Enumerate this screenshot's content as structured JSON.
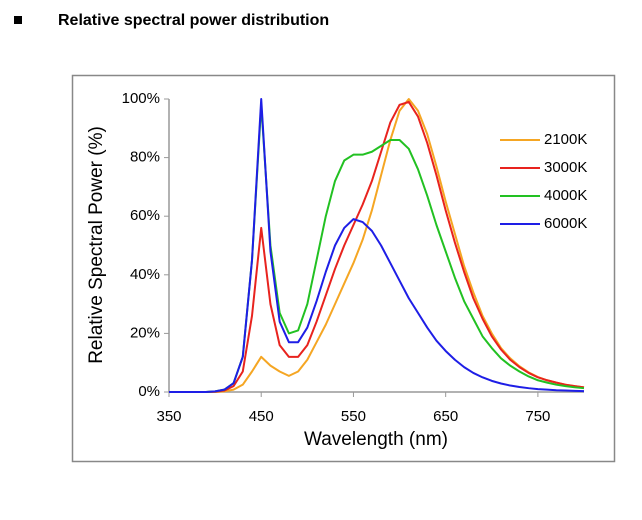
{
  "chart_data": {
    "type": "line",
    "title": "Relative spectral power distribution",
    "x_label": "Wavelength (nm)",
    "y_label": "Relative Spectral Power (%)",
    "x": [
      350,
      360,
      370,
      380,
      390,
      400,
      410,
      420,
      430,
      440,
      450,
      460,
      470,
      480,
      490,
      500,
      510,
      520,
      530,
      540,
      550,
      560,
      570,
      580,
      590,
      600,
      610,
      620,
      630,
      640,
      650,
      660,
      670,
      680,
      690,
      700,
      710,
      720,
      730,
      740,
      750,
      760,
      770,
      780,
      790,
      800
    ],
    "xlim": [
      350,
      800
    ],
    "xticks": [
      350,
      450,
      550,
      650,
      750
    ],
    "ylim": [
      0,
      100
    ],
    "yticks": [
      {
        "value": 0,
        "label": "0%"
      },
      {
        "value": 20,
        "label": "20%"
      },
      {
        "value": 40,
        "label": "40%"
      },
      {
        "value": 60,
        "label": "60%"
      },
      {
        "value": 80,
        "label": "80%"
      },
      {
        "value": 100,
        "label": "100%"
      }
    ],
    "grid": false,
    "legend": "upper right",
    "series": [
      {
        "name": "2100K",
        "color": "#f5a623",
        "values": [
          0,
          0,
          0,
          0,
          0,
          0,
          0.2,
          0.8,
          2.5,
          7,
          12,
          9,
          7,
          5.5,
          7,
          11,
          17,
          23,
          30,
          37,
          44,
          52,
          62,
          74,
          86,
          96,
          100,
          96,
          88,
          77,
          65,
          54,
          43,
          34,
          26,
          20,
          15,
          11.5,
          8.8,
          6.7,
          5.1,
          4,
          3.2,
          2.5,
          2,
          1.6
        ]
      },
      {
        "name": "3000K",
        "color": "#e8231e",
        "values": [
          0,
          0,
          0,
          0,
          0,
          0.1,
          0.5,
          2,
          7,
          26,
          56,
          30,
          16,
          12,
          12,
          16,
          24,
          33,
          42,
          50,
          57,
          64,
          72,
          82,
          92,
          98,
          99,
          94,
          85,
          74,
          62,
          51,
          41,
          32,
          25,
          19,
          14.5,
          11,
          8.5,
          6.5,
          5,
          4,
          3.2,
          2.5,
          2,
          1.6
        ]
      },
      {
        "name": "4000K",
        "color": "#22c122",
        "values": [
          0,
          0,
          0,
          0,
          0,
          0.2,
          0.8,
          3,
          12,
          45,
          98,
          50,
          27,
          20,
          21,
          30,
          45,
          60,
          72,
          79,
          81,
          81,
          82,
          84,
          86,
          86,
          83,
          76,
          67,
          57,
          48,
          39,
          31,
          25,
          19,
          15,
          11.5,
          9,
          7,
          5.3,
          4,
          3.2,
          2.5,
          2,
          1.6,
          1.3
        ]
      },
      {
        "name": "6000K",
        "color": "#1e1ee6",
        "values": [
          0,
          0,
          0,
          0,
          0,
          0.2,
          0.8,
          3,
          12,
          45,
          100,
          48,
          24,
          17,
          17,
          22,
          31,
          41,
          50,
          56,
          59,
          58,
          55,
          50,
          44,
          38,
          32,
          27,
          22,
          17.5,
          14,
          11,
          8.5,
          6.5,
          5,
          3.8,
          2.9,
          2.2,
          1.7,
          1.3,
          1,
          0.8,
          0.6,
          0.5,
          0.4,
          0.3
        ]
      }
    ]
  }
}
